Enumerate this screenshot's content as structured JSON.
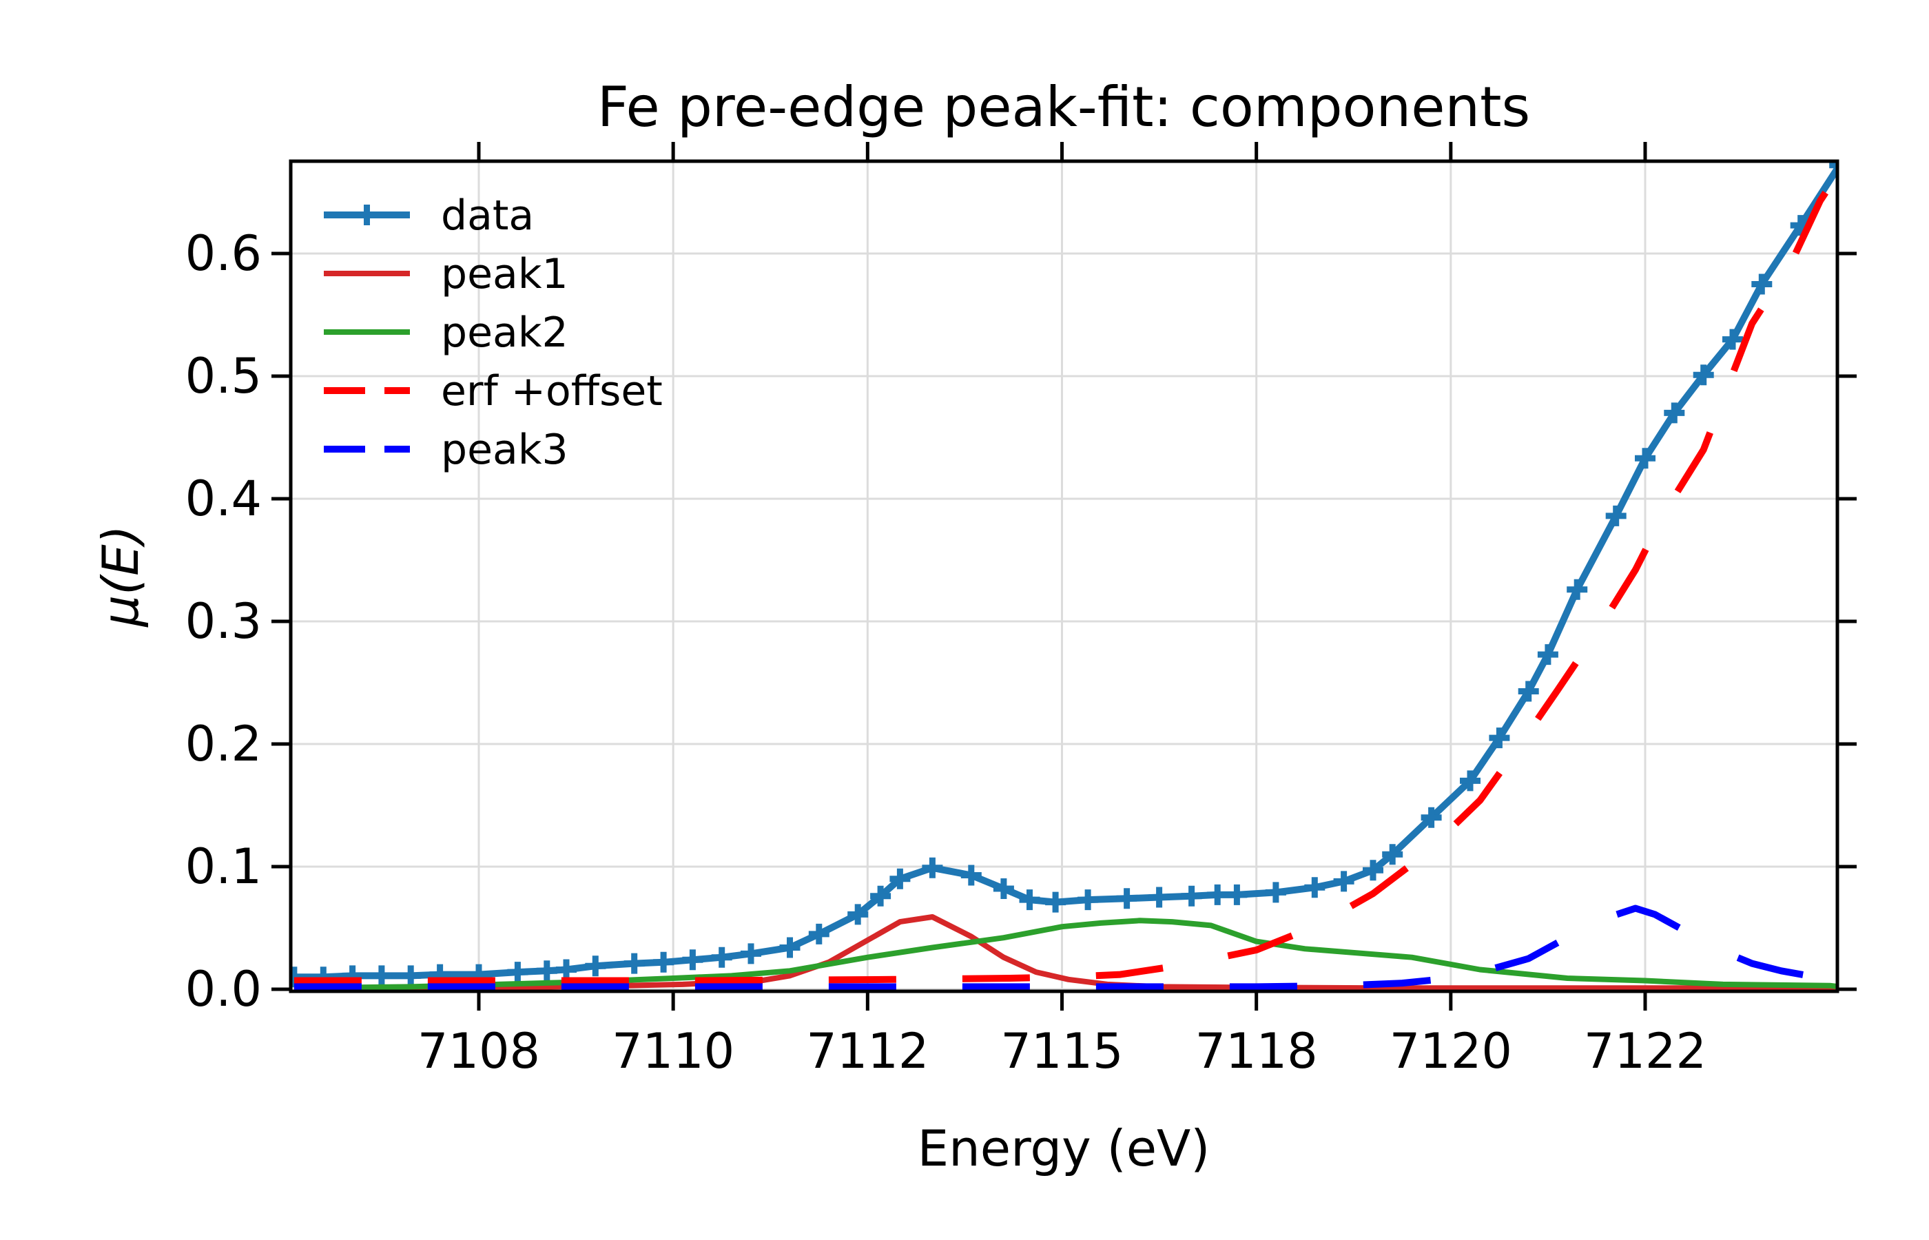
{
  "figure": {
    "background": "#ffffff",
    "grid_color": "#dcdcdc",
    "spine_color": "#000000",
    "tick_color": "#000000"
  },
  "chart_data": {
    "type": "line",
    "title": "Fe pre-edge peak-fit: components",
    "xlabel": "Energy (eV)",
    "ylabel": "μ(E)",
    "grid": true,
    "legend_position": "upper-left",
    "legend_frame": false,
    "x_tick_labels": [
      "7108",
      "7110",
      "7112",
      "7115",
      "7118",
      "7120",
      "7122"
    ],
    "x_tick_energies": [
      7108,
      7110,
      7112,
      7115,
      7118,
      7120,
      7122
    ],
    "x_axis_note": "ticks are equally spaced in plot coordinates although energy increments differ (index-spaced energy grid)",
    "x_range_energy": [
      7106.1,
      7124.0
    ],
    "y_ticks": [
      0.0,
      0.1,
      0.2,
      0.3,
      0.4,
      0.5,
      0.6
    ],
    "y_tick_labels": [
      "0.0",
      "0.1",
      "0.2",
      "0.3",
      "0.4",
      "0.5",
      "0.6"
    ],
    "ylim": [
      0.0,
      0.675
    ],
    "series": [
      {
        "name": "data",
        "color": "#1f77b4",
        "linewidth": 10,
        "dash": null,
        "marker": "plus",
        "points": [
          [
            7106.1,
            0.01
          ],
          [
            7106.4,
            0.01
          ],
          [
            7106.7,
            0.011
          ],
          [
            7107.0,
            0.011
          ],
          [
            7107.3,
            0.011
          ],
          [
            7107.6,
            0.012
          ],
          [
            7108.0,
            0.012
          ],
          [
            7108.4,
            0.014
          ],
          [
            7108.7,
            0.015
          ],
          [
            7108.9,
            0.016
          ],
          [
            7109.2,
            0.019
          ],
          [
            7109.6,
            0.021
          ],
          [
            7109.9,
            0.022
          ],
          [
            7110.2,
            0.024
          ],
          [
            7110.5,
            0.026
          ],
          [
            7110.8,
            0.029
          ],
          [
            7111.2,
            0.034
          ],
          [
            7111.5,
            0.045
          ],
          [
            7111.9,
            0.061
          ],
          [
            7112.2,
            0.076
          ],
          [
            7112.5,
            0.09
          ],
          [
            7113.0,
            0.099
          ],
          [
            7113.6,
            0.093
          ],
          [
            7114.1,
            0.082
          ],
          [
            7114.5,
            0.073
          ],
          [
            7114.9,
            0.071
          ],
          [
            7115.4,
            0.073
          ],
          [
            7116.0,
            0.074
          ],
          [
            7116.5,
            0.075
          ],
          [
            7117.0,
            0.076
          ],
          [
            7117.4,
            0.077
          ],
          [
            7117.7,
            0.077
          ],
          [
            7118.2,
            0.079
          ],
          [
            7118.6,
            0.083
          ],
          [
            7118.9,
            0.088
          ],
          [
            7119.2,
            0.097
          ],
          [
            7119.4,
            0.11
          ],
          [
            7119.8,
            0.14
          ],
          [
            7120.2,
            0.17
          ],
          [
            7120.5,
            0.205
          ],
          [
            7120.8,
            0.243
          ],
          [
            7121.0,
            0.273
          ],
          [
            7121.3,
            0.326
          ],
          [
            7121.7,
            0.386
          ],
          [
            7122.0,
            0.433
          ],
          [
            7122.3,
            0.47
          ],
          [
            7122.6,
            0.501
          ],
          [
            7122.9,
            0.53
          ],
          [
            7123.2,
            0.575
          ],
          [
            7123.6,
            0.623
          ],
          [
            7124.0,
            0.672
          ]
        ]
      },
      {
        "name": "peak1",
        "color": "#d62728",
        "linewidth": 8,
        "dash": null,
        "marker": null,
        "points": [
          [
            7106.1,
            0.001
          ],
          [
            7108.0,
            0.001
          ],
          [
            7109.5,
            0.003
          ],
          [
            7110.1,
            0.004
          ],
          [
            7110.9,
            0.007
          ],
          [
            7111.2,
            0.011
          ],
          [
            7111.6,
            0.022
          ],
          [
            7112.0,
            0.04
          ],
          [
            7112.5,
            0.055
          ],
          [
            7113.0,
            0.059
          ],
          [
            7113.6,
            0.043
          ],
          [
            7114.1,
            0.026
          ],
          [
            7114.6,
            0.014
          ],
          [
            7115.1,
            0.008
          ],
          [
            7115.7,
            0.004
          ],
          [
            7116.5,
            0.002
          ],
          [
            7117.7,
            0.0015
          ],
          [
            7119.3,
            0.001
          ],
          [
            7122.1,
            0.001
          ],
          [
            7124.0,
            0.001
          ]
        ]
      },
      {
        "name": "peak2",
        "color": "#2ca02c",
        "linewidth": 8,
        "dash": null,
        "marker": null,
        "points": [
          [
            7106.1,
            0.001
          ],
          [
            7107.3,
            0.002
          ],
          [
            7108.2,
            0.004
          ],
          [
            7109.1,
            0.006
          ],
          [
            7110.0,
            0.009
          ],
          [
            7110.6,
            0.011
          ],
          [
            7111.2,
            0.015
          ],
          [
            7112.0,
            0.026
          ],
          [
            7113.0,
            0.034
          ],
          [
            7114.1,
            0.042
          ],
          [
            7115.0,
            0.051
          ],
          [
            7115.6,
            0.054
          ],
          [
            7116.2,
            0.056
          ],
          [
            7116.7,
            0.055
          ],
          [
            7117.3,
            0.052
          ],
          [
            7118.0,
            0.039
          ],
          [
            7118.5,
            0.033
          ],
          [
            7119.6,
            0.026
          ],
          [
            7120.3,
            0.016
          ],
          [
            7121.2,
            0.009
          ],
          [
            7122.0,
            0.007
          ],
          [
            7122.8,
            0.004
          ],
          [
            7123.9,
            0.003
          ],
          [
            7124.0,
            0.002
          ]
        ]
      },
      {
        "name": "erf +offset",
        "color": "#ff0000",
        "linewidth": 10,
        "dash": [
          98,
          96
        ],
        "marker": null,
        "points": [
          [
            7106.1,
            0.007
          ],
          [
            7110.2,
            0.007
          ],
          [
            7112.4,
            0.008
          ],
          [
            7114.2,
            0.009
          ],
          [
            7115.1,
            0.01
          ],
          [
            7115.9,
            0.012
          ],
          [
            7116.9,
            0.02
          ],
          [
            7118.0,
            0.032
          ],
          [
            7118.6,
            0.051
          ],
          [
            7119.2,
            0.078
          ],
          [
            7119.7,
            0.108
          ],
          [
            7120.3,
            0.154
          ],
          [
            7120.7,
            0.198
          ],
          [
            7121.1,
            0.244
          ],
          [
            7121.5,
            0.291
          ],
          [
            7121.9,
            0.342
          ],
          [
            7122.2,
            0.389
          ],
          [
            7122.6,
            0.44
          ],
          [
            7123.1,
            0.543
          ],
          [
            7123.5,
            0.592
          ],
          [
            7123.8,
            0.643
          ],
          [
            7124.0,
            0.667
          ]
        ]
      },
      {
        "name": "peak3",
        "color": "#0000ff",
        "linewidth": 10,
        "dash": [
          98,
          96
        ],
        "marker": null,
        "points": [
          [
            7106.1,
            0.002
          ],
          [
            7110.2,
            0.002
          ],
          [
            7114.6,
            0.002
          ],
          [
            7118.0,
            0.002
          ],
          [
            7118.9,
            0.003
          ],
          [
            7119.5,
            0.005
          ],
          [
            7120.0,
            0.009
          ],
          [
            7120.4,
            0.016
          ],
          [
            7120.8,
            0.025
          ],
          [
            7121.1,
            0.038
          ],
          [
            7121.4,
            0.053
          ],
          [
            7121.9,
            0.066
          ],
          [
            7122.1,
            0.061
          ],
          [
            7122.4,
            0.048
          ],
          [
            7122.7,
            0.034
          ],
          [
            7123.1,
            0.021
          ],
          [
            7123.4,
            0.015
          ],
          [
            7123.9,
            0.008
          ],
          [
            7124.0,
            0.008
          ]
        ]
      }
    ]
  }
}
